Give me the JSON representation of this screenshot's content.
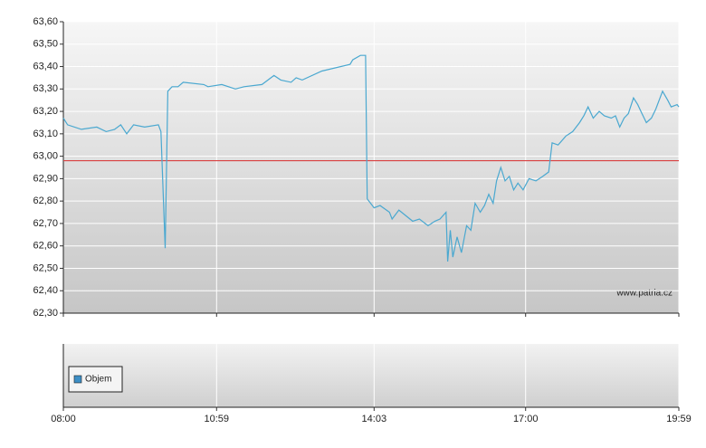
{
  "chart_data": [
    {
      "type": "line",
      "watermark": "www.patria.cz",
      "x": [
        480,
        485,
        501,
        519,
        530,
        540,
        547,
        554,
        562,
        575,
        591,
        594,
        599,
        602,
        607,
        614,
        620,
        644,
        649,
        665,
        681,
        691,
        712,
        726,
        734,
        746,
        752,
        759,
        782,
        815,
        818,
        827,
        833,
        835,
        843,
        850,
        861,
        864,
        872,
        888,
        896,
        906,
        914,
        920,
        927,
        929,
        932,
        935,
        940,
        945,
        951,
        956,
        961,
        967,
        972,
        977,
        982,
        986,
        991,
        996,
        1001,
        1006,
        1011,
        1017,
        1024,
        1032,
        1040,
        1047,
        1051,
        1058,
        1067,
        1075,
        1083,
        1088,
        1093,
        1099,
        1106,
        1112,
        1120,
        1125,
        1130,
        1135,
        1140,
        1146,
        1151,
        1156,
        1161,
        1167,
        1172,
        1180,
        1186,
        1190,
        1197,
        1199
      ],
      "series": [
        {
          "color": "#4aa8d0",
          "values": [
            63.17,
            63.14,
            63.12,
            63.13,
            63.11,
            63.12,
            63.14,
            63.1,
            63.14,
            63.13,
            63.14,
            63.11,
            62.59,
            63.29,
            63.31,
            63.31,
            63.33,
            63.32,
            63.31,
            63.32,
            63.3,
            63.31,
            63.32,
            63.36,
            63.34,
            63.33,
            63.35,
            63.34,
            63.38,
            63.41,
            63.43,
            63.45,
            63.45,
            62.81,
            62.77,
            62.78,
            62.75,
            62.72,
            62.76,
            62.71,
            62.72,
            62.69,
            62.71,
            62.72,
            62.75,
            62.53,
            62.67,
            62.55,
            62.64,
            62.57,
            62.69,
            62.67,
            62.79,
            62.75,
            62.78,
            62.83,
            62.79,
            62.89,
            62.95,
            62.89,
            62.91,
            62.85,
            62.88,
            62.85,
            62.9,
            62.89,
            62.91,
            62.93,
            63.06,
            63.05,
            63.09,
            63.11,
            63.15,
            63.18,
            63.22,
            63.17,
            63.2,
            63.18,
            63.17,
            63.18,
            63.13,
            63.17,
            63.19,
            63.26,
            63.23,
            63.19,
            63.15,
            63.17,
            63.21,
            63.29,
            63.25,
            63.22,
            63.23,
            63.22
          ]
        }
      ],
      "reference_line": 62.98,
      "reference_color": "#d94040",
      "xlim": [
        480,
        1199
      ],
      "xticks": [
        {
          "value": 480,
          "label": "08:00"
        },
        {
          "value": 659,
          "label": "10:59"
        },
        {
          "value": 843,
          "label": "14:03"
        },
        {
          "value": 1020,
          "label": "17:00"
        },
        {
          "value": 1199,
          "label": "19:59"
        }
      ],
      "ylim": [
        62.3,
        63.6
      ],
      "yticks": [
        {
          "value": 62.3,
          "label": "62,30"
        },
        {
          "value": 62.4,
          "label": "62,40"
        },
        {
          "value": 62.5,
          "label": "62,50"
        },
        {
          "value": 62.6,
          "label": "62,60"
        },
        {
          "value": 62.7,
          "label": "62,70"
        },
        {
          "value": 62.8,
          "label": "62,80"
        },
        {
          "value": 62.9,
          "label": "62,90"
        },
        {
          "value": 63.0,
          "label": "63,00"
        },
        {
          "value": 63.1,
          "label": "63,10"
        },
        {
          "value": 63.2,
          "label": "63,20"
        },
        {
          "value": 63.3,
          "label": "63,30"
        },
        {
          "value": 63.4,
          "label": "63,40"
        },
        {
          "value": 63.5,
          "label": "63,50"
        },
        {
          "value": 63.6,
          "label": "63,60"
        }
      ],
      "grid": true
    },
    {
      "type": "bar",
      "series": [
        {
          "name": "Objem",
          "color": "#3d8fc6"
        }
      ]
    }
  ]
}
